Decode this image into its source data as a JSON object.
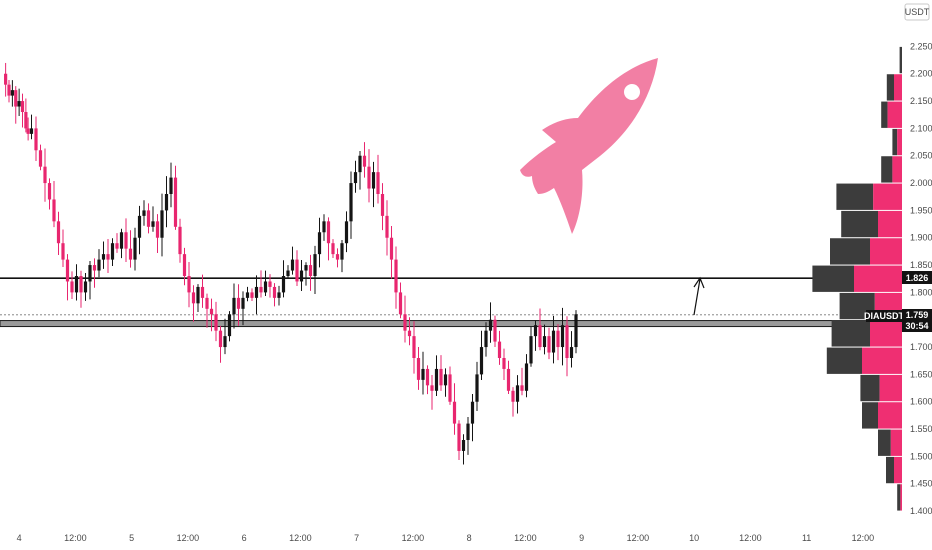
{
  "chart_data": {
    "type": "candlestick",
    "currency": "USDT",
    "symbol": "DIAUSDT",
    "countdown": "30:54",
    "last_price": 1.759,
    "ylim": [
      1.38,
      2.28
    ],
    "y_ticks": [
      "2.250",
      "2.200",
      "2.150",
      "2.100",
      "2.050",
      "2.000",
      "1.950",
      "1.900",
      "1.850",
      "1.800",
      "1.750",
      "1.700",
      "1.650",
      "1.600",
      "1.550",
      "1.500",
      "1.450",
      "1.400"
    ],
    "x_ticks": [
      {
        "label": "4",
        "t": 0.12
      },
      {
        "label": "12:00",
        "t": 0.62
      },
      {
        "label": "5",
        "t": 1.12
      },
      {
        "label": "12:00",
        "t": 1.62
      },
      {
        "label": "6",
        "t": 2.12
      },
      {
        "label": "12:00",
        "t": 2.62
      },
      {
        "label": "7",
        "t": 3.12
      },
      {
        "label": "12:00",
        "t": 3.62
      },
      {
        "label": "8",
        "t": 4.12
      },
      {
        "label": "12:00",
        "t": 4.62
      },
      {
        "label": "9",
        "t": 5.12
      },
      {
        "label": "12:00",
        "t": 5.62
      },
      {
        "label": "10",
        "t": 6.12
      },
      {
        "label": "12:00",
        "t": 6.62
      },
      {
        "label": "11",
        "t": 7.12
      },
      {
        "label": "12:00",
        "t": 7.62
      }
    ],
    "x_range": [
      -0.05,
      7.95
    ],
    "levels": [
      {
        "price": 1.826,
        "label": "1.826"
      },
      {
        "price": 1.743,
        "label": ""
      }
    ],
    "price_path": [
      [
        0.0,
        2.18
      ],
      [
        0.03,
        2.16
      ],
      [
        0.06,
        2.17
      ],
      [
        0.09,
        2.14
      ],
      [
        0.12,
        2.15
      ],
      [
        0.15,
        2.13
      ],
      [
        0.18,
        2.1
      ],
      [
        0.2,
        2.09
      ],
      [
        0.23,
        2.1
      ],
      [
        0.27,
        2.06
      ],
      [
        0.31,
        2.03
      ],
      [
        0.35,
        2.0
      ],
      [
        0.39,
        1.97
      ],
      [
        0.43,
        1.93
      ],
      [
        0.47,
        1.89
      ],
      [
        0.51,
        1.86
      ],
      [
        0.55,
        1.82
      ],
      [
        0.59,
        1.8
      ],
      [
        0.63,
        1.83
      ],
      [
        0.67,
        1.8
      ],
      [
        0.71,
        1.82
      ],
      [
        0.75,
        1.85
      ],
      [
        0.79,
        1.84
      ],
      [
        0.83,
        1.86
      ],
      [
        0.87,
        1.87
      ],
      [
        0.91,
        1.86
      ],
      [
        0.95,
        1.89
      ],
      [
        0.99,
        1.88
      ],
      [
        1.03,
        1.91
      ],
      [
        1.07,
        1.88
      ],
      [
        1.11,
        1.86
      ],
      [
        1.15,
        1.9
      ],
      [
        1.19,
        1.94
      ],
      [
        1.23,
        1.95
      ],
      [
        1.27,
        1.92
      ],
      [
        1.31,
        1.93
      ],
      [
        1.35,
        1.9
      ],
      [
        1.39,
        1.95
      ],
      [
        1.43,
        1.98
      ],
      [
        1.47,
        2.01
      ],
      [
        1.51,
        1.92
      ],
      [
        1.55,
        1.87
      ],
      [
        1.59,
        1.83
      ],
      [
        1.63,
        1.8
      ],
      [
        1.67,
        1.78
      ],
      [
        1.71,
        1.81
      ],
      [
        1.75,
        1.79
      ],
      [
        1.79,
        1.77
      ],
      [
        1.83,
        1.76
      ],
      [
        1.87,
        1.73
      ],
      [
        1.91,
        1.7
      ],
      [
        1.95,
        1.72
      ],
      [
        1.99,
        1.76
      ],
      [
        2.03,
        1.79
      ],
      [
        2.07,
        1.77
      ],
      [
        2.11,
        1.79
      ],
      [
        2.15,
        1.8
      ],
      [
        2.19,
        1.79
      ],
      [
        2.23,
        1.81
      ],
      [
        2.27,
        1.8
      ],
      [
        2.31,
        1.82
      ],
      [
        2.35,
        1.81
      ],
      [
        2.39,
        1.79
      ],
      [
        2.43,
        1.8
      ],
      [
        2.47,
        1.83
      ],
      [
        2.51,
        1.84
      ],
      [
        2.55,
        1.86
      ],
      [
        2.59,
        1.82
      ],
      [
        2.63,
        1.84
      ],
      [
        2.67,
        1.85
      ],
      [
        2.71,
        1.83
      ],
      [
        2.75,
        1.87
      ],
      [
        2.79,
        1.91
      ],
      [
        2.83,
        1.93
      ],
      [
        2.87,
        1.89
      ],
      [
        2.91,
        1.87
      ],
      [
        2.95,
        1.86
      ],
      [
        2.99,
        1.89
      ],
      [
        3.03,
        1.93
      ],
      [
        3.07,
        2.0
      ],
      [
        3.11,
        2.02
      ],
      [
        3.15,
        2.05
      ],
      [
        3.19,
        2.03
      ],
      [
        3.23,
        1.99
      ],
      [
        3.27,
        2.02
      ],
      [
        3.31,
        1.98
      ],
      [
        3.35,
        1.94
      ],
      [
        3.39,
        1.9
      ],
      [
        3.43,
        1.86
      ],
      [
        3.47,
        1.8
      ],
      [
        3.51,
        1.76
      ],
      [
        3.55,
        1.73
      ],
      [
        3.59,
        1.72
      ],
      [
        3.63,
        1.68
      ],
      [
        3.67,
        1.64
      ],
      [
        3.71,
        1.66
      ],
      [
        3.75,
        1.63
      ],
      [
        3.79,
        1.62
      ],
      [
        3.83,
        1.66
      ],
      [
        3.87,
        1.63
      ],
      [
        3.91,
        1.65
      ],
      [
        3.95,
        1.6
      ],
      [
        3.99,
        1.56
      ],
      [
        4.03,
        1.51
      ],
      [
        4.07,
        1.53
      ],
      [
        4.11,
        1.56
      ],
      [
        4.15,
        1.6
      ],
      [
        4.19,
        1.65
      ],
      [
        4.23,
        1.7
      ],
      [
        4.27,
        1.73
      ],
      [
        4.31,
        1.75
      ],
      [
        4.35,
        1.71
      ],
      [
        4.39,
        1.68
      ],
      [
        4.43,
        1.66
      ],
      [
        4.47,
        1.62
      ],
      [
        4.51,
        1.6
      ],
      [
        4.55,
        1.63
      ],
      [
        4.59,
        1.62
      ],
      [
        4.63,
        1.67
      ],
      [
        4.67,
        1.72
      ],
      [
        4.71,
        1.74
      ],
      [
        4.75,
        1.7
      ],
      [
        4.79,
        1.72
      ],
      [
        4.83,
        1.69
      ],
      [
        4.87,
        1.73
      ],
      [
        4.91,
        1.7
      ],
      [
        4.95,
        1.74
      ],
      [
        4.99,
        1.68
      ],
      [
        5.03,
        1.7
      ],
      [
        5.07,
        1.76
      ]
    ],
    "volume_profile": [
      {
        "price": 2.225,
        "up": 3,
        "down": 0
      },
      {
        "price": 2.175,
        "up": 9,
        "down": 10
      },
      {
        "price": 2.125,
        "up": 8,
        "down": 18
      },
      {
        "price": 2.075,
        "up": 6,
        "down": 6
      },
      {
        "price": 2.025,
        "up": 14,
        "down": 12
      },
      {
        "price": 1.975,
        "up": 46,
        "down": 36
      },
      {
        "price": 1.925,
        "up": 46,
        "down": 30
      },
      {
        "price": 1.875,
        "up": 50,
        "down": 40
      },
      {
        "price": 1.825,
        "up": 52,
        "down": 60
      },
      {
        "price": 1.775,
        "up": 44,
        "down": 34
      },
      {
        "price": 1.725,
        "up": 48,
        "down": 40
      },
      {
        "price": 1.675,
        "up": 44,
        "down": 50
      },
      {
        "price": 1.625,
        "up": 24,
        "down": 28
      },
      {
        "price": 1.575,
        "up": 20,
        "down": 30
      },
      {
        "price": 1.525,
        "up": 16,
        "down": 14
      },
      {
        "price": 1.475,
        "up": 10,
        "down": 10
      },
      {
        "price": 1.425,
        "up": 4,
        "down": 2
      }
    ],
    "colors": {
      "up": "#151515",
      "down": "#e8266f",
      "profile_up": "#3c3c3c",
      "profile_down": "#ef2f72",
      "rocket": "#f27fa4",
      "axis_text": "#4a4a4a"
    }
  }
}
